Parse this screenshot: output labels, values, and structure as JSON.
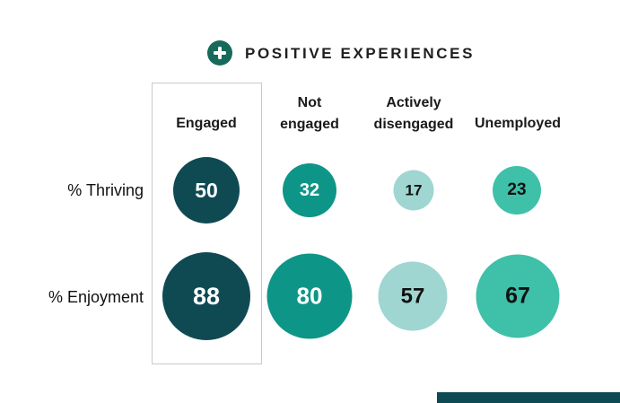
{
  "header": {
    "icon": "plus-icon",
    "title": "POSITIVE EXPERIENCES"
  },
  "chart_data": {
    "type": "table",
    "encoding": "bubble-size",
    "title": "POSITIVE EXPERIENCES",
    "columns": [
      "Engaged",
      "Not engaged",
      "Actively disengaged",
      "Unemployed"
    ],
    "rows": [
      "% Thriving",
      "% Enjoyment"
    ],
    "series": [
      {
        "name": "% Thriving",
        "values": [
          50,
          32,
          17,
          23
        ]
      },
      {
        "name": "% Enjoyment",
        "values": [
          88,
          80,
          57,
          67
        ]
      }
    ],
    "value_unit": "%",
    "highlighted_column": "Engaged",
    "legend": "none",
    "grid": "off",
    "bubble_scale": "area proportional to value"
  },
  "colors": {
    "dark": "#0f4a53",
    "green": "#0d9687",
    "seafoam": "#9fd6d1",
    "mint": "#3fc0a9",
    "icon-bg": "#176a5b",
    "box-border": "#c9c9c9",
    "text": "#1a1a1a",
    "bottom-bar": "#0e4a53"
  }
}
